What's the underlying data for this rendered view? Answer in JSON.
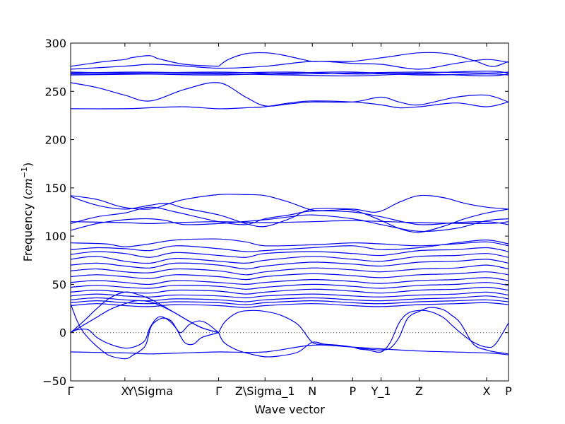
{
  "chart_data": {
    "type": "line",
    "title": "",
    "xlabel": "Wave vector",
    "ylabel_text": "Frequency (",
    "ylabel_unit_base": "cm",
    "ylabel_unit_exp": "−1",
    "ylabel_close": ")",
    "ylim": [
      -50,
      300
    ],
    "yticks": [
      -50,
      0,
      50,
      100,
      150,
      200,
      250,
      300
    ],
    "ytick_labels": [
      "−50",
      "0",
      "50",
      "100",
      "150",
      "200",
      "250",
      "300"
    ],
    "xlim": [
      0,
      100
    ],
    "xticks": [
      {
        "label": "Γ",
        "x": 0
      },
      {
        "label": "X",
        "x": 12.4
      },
      {
        "label": "Y\\Sigma",
        "x": 18.1
      },
      {
        "label": "Γ",
        "x": 33.8
      },
      {
        "label": "Z\\Sigma_1",
        "x": 44.4
      },
      {
        "label": "N",
        "x": 55.2
      },
      {
        "label": "P",
        "x": 64.4
      },
      {
        "label": "Y_1",
        "x": 70.9
      },
      {
        "label": "Z",
        "x": 79.6
      },
      {
        "label": "X",
        "x": 95.0
      },
      {
        "label": "P",
        "x": 100
      }
    ],
    "zero_line": {
      "style": "dotted",
      "color": "#555555"
    },
    "series_color": "#0000ee",
    "series": [
      {
        "x": [
          0,
          8,
          12.4,
          14,
          18.1,
          20,
          26,
          33.8
        ],
        "y": [
          276,
          281,
          283,
          285,
          287,
          284,
          278,
          276
        ]
      },
      {
        "x": [
          33.8,
          36,
          40,
          44.4,
          48,
          53,
          55.2,
          58,
          64.4
        ],
        "y": [
          276,
          283,
          289,
          290,
          288,
          283,
          281,
          281,
          281
        ]
      },
      {
        "x": [
          64.4,
          68,
          73,
          79.6,
          86,
          92,
          95,
          97,
          100
        ],
        "y": [
          281,
          283,
          286,
          290,
          289,
          282,
          277,
          276,
          281
        ]
      },
      {
        "x": [
          0,
          12,
          18.1,
          24,
          33.8,
          44.4,
          55.2,
          64.4,
          70.9,
          79.6,
          88,
          95,
          100
        ],
        "y": [
          273,
          276,
          278,
          277,
          274,
          276,
          281,
          279,
          278,
          273,
          279,
          283,
          280
        ]
      },
      {
        "x": [
          0,
          15,
          33.8,
          50,
          64.4,
          79.6,
          95,
          100
        ],
        "y": [
          270,
          269,
          270,
          268,
          269,
          270,
          269,
          270
        ]
      },
      {
        "x": [
          0,
          15,
          33.8,
          50,
          64.4,
          79.6,
          95,
          100
        ],
        "y": [
          269,
          270,
          269,
          270,
          268,
          269,
          271,
          269
        ]
      },
      {
        "x": [
          0,
          15,
          33.8,
          50,
          64.4,
          79.6,
          95,
          100
        ],
        "y": [
          268,
          268,
          267,
          269,
          270,
          267,
          268,
          267
        ]
      },
      {
        "x": [
          0,
          20,
          33.8,
          50,
          64.4,
          79.6,
          95,
          100
        ],
        "y": [
          267,
          268,
          268,
          267,
          266,
          268,
          266,
          268
        ]
      },
      {
        "x": [
          0,
          6,
          12.4,
          18.1,
          26,
          33.8,
          40,
          44.4,
          50,
          55.2,
          64.4,
          70.9,
          75,
          79.6,
          88,
          95,
          100
        ],
        "y": [
          259,
          254,
          246,
          240,
          252,
          259,
          244,
          235,
          237,
          239,
          239,
          244,
          239,
          236,
          244,
          246,
          239
        ]
      },
      {
        "x": [
          0,
          12.4,
          18.1,
          26,
          33.8,
          40,
          44.4,
          50,
          55.2,
          64.4,
          70.9,
          75,
          79.6,
          88,
          95,
          100
        ],
        "y": [
          232,
          232,
          233,
          234,
          232,
          233,
          234,
          238,
          240,
          239,
          236,
          233,
          234,
          238,
          234,
          239
        ]
      },
      {
        "x": [
          0,
          6,
          12,
          18.1,
          22,
          26,
          33.8,
          40,
          44.4,
          50,
          55.2,
          60,
          64.4,
          70,
          75,
          79.6,
          85,
          90,
          95,
          100
        ],
        "y": [
          142,
          138,
          130,
          128,
          133,
          138,
          143,
          143,
          142,
          135,
          127,
          127,
          127,
          118,
          108,
          104,
          110,
          118,
          124,
          128
        ]
      },
      {
        "x": [
          0,
          6,
          12.4,
          18.1,
          22,
          26,
          33.8,
          40,
          44.4,
          50,
          55.2,
          64.4,
          70,
          75,
          79.6,
          85,
          90,
          95,
          100
        ],
        "y": [
          141,
          132,
          128,
          132,
          134,
          129,
          122,
          113,
          110,
          118,
          128,
          128,
          125,
          135,
          142,
          140,
          134,
          130,
          128
        ]
      },
      {
        "x": [
          0,
          6,
          12.4,
          18.1,
          24,
          33.8,
          40,
          44.4,
          50,
          55.2,
          64.4,
          70.9,
          79.6,
          88,
          95,
          100
        ],
        "y": [
          113,
          120,
          124,
          130,
          125,
          115,
          112,
          118,
          122,
          126,
          125,
          120,
          112,
          114,
          115,
          112
        ]
      },
      {
        "x": [
          0,
          6,
          12.4,
          18.1,
          22,
          26,
          33.8,
          44.4,
          50,
          55.2,
          64.4,
          70.9,
          79.6,
          88,
          95,
          100
        ],
        "y": [
          106,
          113,
          117,
          118,
          116,
          112,
          113,
          117,
          120,
          122,
          118,
          112,
          105,
          108,
          116,
          118
        ]
      },
      {
        "x": [
          0,
          12.4,
          18.1,
          24,
          33.8,
          44.4,
          55.2,
          64.4,
          79.6,
          95,
          100
        ],
        "y": [
          115,
          114,
          113,
          114,
          115,
          114,
          115,
          116,
          114,
          113,
          115
        ]
      },
      {
        "x": [
          0,
          8,
          12.4,
          18.1,
          24,
          33.8,
          40,
          44.4,
          55.2,
          64.4,
          70.9,
          79.6,
          88,
          95,
          100
        ],
        "y": [
          93,
          92,
          89,
          92,
          96,
          97,
          94,
          90,
          91,
          93,
          92,
          90,
          92,
          94,
          90
        ]
      },
      {
        "x": [
          0,
          6,
          12.4,
          18.1,
          24,
          33.8,
          40,
          44.4,
          55.2,
          64.4,
          70.9,
          79.6,
          88,
          95,
          100
        ],
        "y": [
          86,
          88,
          87,
          85,
          90,
          87,
          84,
          85,
          88,
          90,
          86,
          88,
          93,
          96,
          92
        ]
      },
      {
        "x": [
          0,
          6,
          12.4,
          18.1,
          24,
          33.8,
          40,
          44.4,
          55.2,
          64.4,
          70.9,
          79.6,
          88,
          95,
          100
        ],
        "y": [
          81,
          84,
          82,
          78,
          83,
          80,
          78,
          82,
          84,
          82,
          80,
          85,
          86,
          88,
          84
        ]
      },
      {
        "x": [
          0,
          6,
          12.4,
          18.1,
          24,
          33.8,
          40,
          44.4,
          55.2,
          64.4,
          70.9,
          79.6,
          88,
          95,
          100
        ],
        "y": [
          76,
          79,
          74,
          72,
          77,
          74,
          72,
          75,
          79,
          76,
          74,
          79,
          80,
          82,
          78
        ]
      },
      {
        "x": [
          0,
          6,
          12.4,
          18.1,
          24,
          33.8,
          40,
          44.4,
          55.2,
          64.4,
          70.9,
          79.6,
          88,
          95,
          100
        ],
        "y": [
          70,
          72,
          69,
          67,
          72,
          70,
          66,
          69,
          73,
          71,
          69,
          73,
          74,
          76,
          72
        ]
      },
      {
        "x": [
          0,
          6,
          12.4,
          18.1,
          24,
          33.8,
          40,
          44.4,
          55.2,
          64.4,
          70.9,
          79.6,
          88,
          95,
          100
        ],
        "y": [
          64,
          66,
          63,
          62,
          66,
          64,
          60,
          63,
          67,
          65,
          63,
          66,
          67,
          70,
          66
        ]
      },
      {
        "x": [
          0,
          6,
          12.4,
          18.1,
          24,
          33.8,
          40,
          44.4,
          55.2,
          64.4,
          70.9,
          79.6,
          88,
          95,
          100
        ],
        "y": [
          58,
          60,
          58,
          56,
          60,
          58,
          55,
          58,
          61,
          59,
          57,
          60,
          61,
          63,
          60
        ]
      },
      {
        "x": [
          0,
          6,
          12.4,
          18.1,
          24,
          33.8,
          40,
          44.4,
          55.2,
          64.4,
          70.9,
          79.6,
          88,
          95,
          100
        ],
        "y": [
          52,
          54,
          52,
          50,
          54,
          52,
          50,
          52,
          55,
          53,
          51,
          54,
          55,
          57,
          54
        ]
      },
      {
        "x": [
          0,
          6,
          12.4,
          18.1,
          24,
          33.8,
          40,
          44.4,
          55.2,
          64.4,
          70.9,
          79.6,
          88,
          95,
          100
        ],
        "y": [
          47,
          49,
          47,
          46,
          49,
          48,
          45,
          47,
          50,
          48,
          46,
          49,
          50,
          52,
          49
        ]
      },
      {
        "x": [
          0,
          6,
          12.4,
          18.1,
          24,
          33.8,
          40,
          44.4,
          55.2,
          64.4,
          70.9,
          79.6,
          88,
          95,
          100
        ],
        "y": [
          42,
          44,
          42,
          41,
          44,
          43,
          40,
          42,
          45,
          43,
          41,
          44,
          45,
          47,
          44
        ]
      },
      {
        "x": [
          0,
          6,
          12.4,
          18.1,
          24,
          33.8,
          40,
          44.4,
          55.2,
          64.4,
          70.9,
          79.6,
          88,
          95,
          100
        ],
        "y": [
          38,
          40,
          38,
          37,
          39,
          38,
          36,
          38,
          40,
          38,
          37,
          39,
          40,
          42,
          39
        ]
      },
      {
        "x": [
          0,
          6,
          12.4,
          18.1,
          24,
          33.8,
          40,
          44.4,
          55.2,
          64.4,
          70.9,
          79.6,
          88,
          95,
          100
        ],
        "y": [
          34,
          36,
          34,
          33,
          35,
          34,
          32,
          34,
          36,
          34,
          33,
          35,
          36,
          38,
          35
        ]
      },
      {
        "x": [
          0,
          6,
          12.4,
          18.1,
          24,
          33.8,
          40,
          44.4,
          55.2,
          64.4,
          70.9,
          79.6,
          88,
          95,
          100
        ],
        "y": [
          31,
          33,
          31,
          30,
          32,
          31,
          29,
          31,
          33,
          31,
          30,
          32,
          33,
          34,
          32
        ]
      },
      {
        "x": [
          0,
          6,
          12.4,
          18.1,
          24,
          33.8,
          40,
          44.4,
          55.2,
          64.4,
          70.9,
          79.6,
          88,
          95,
          100
        ],
        "y": [
          28,
          30,
          28,
          27,
          29,
          28,
          26,
          28,
          30,
          28,
          27,
          29,
          30,
          31,
          29
        ]
      },
      {
        "x": [
          0,
          3,
          6,
          9,
          12.4,
          15,
          18.1,
          21,
          24,
          27,
          30,
          33.8
        ],
        "y": [
          0,
          12,
          25,
          36,
          42,
          40,
          35,
          28,
          20,
          12,
          5,
          0
        ]
      },
      {
        "x": [
          0,
          3,
          6,
          9,
          12.4,
          15,
          18.1,
          21,
          24,
          27,
          30,
          33.8
        ],
        "y": [
          0,
          8,
          16,
          24,
          30,
          33,
          32,
          27,
          20,
          12,
          5,
          0
        ]
      },
      {
        "x": [
          0,
          1.5,
          4,
          6,
          9,
          12.4,
          15,
          17,
          18.1,
          20,
          22,
          24,
          26,
          28,
          30,
          33.8
        ],
        "y": [
          0,
          3,
          3,
          -5,
          -12,
          -16,
          -14,
          -8,
          5,
          16,
          14,
          5,
          -10,
          -12,
          -5,
          0
        ]
      },
      {
        "x": [
          0,
          1.5,
          3,
          5,
          7,
          9,
          12.4,
          14,
          17,
          18.1,
          19,
          21,
          23,
          25,
          27,
          29,
          31,
          33.8
        ],
        "y": [
          30,
          12,
          0,
          -10,
          -18,
          -24,
          -27,
          -24,
          -14,
          3,
          10,
          15,
          12,
          0,
          8,
          12,
          10,
          0
        ]
      },
      {
        "x": [
          33.8,
          35,
          37,
          39,
          42,
          44.4,
          48,
          52,
          55.2,
          58,
          61,
          64.4,
          66,
          68,
          70.9,
          73,
          75,
          77,
          79.6,
          82,
          85,
          87,
          89,
          92,
          95,
          97,
          100
        ],
        "y": [
          0,
          10,
          18,
          22,
          23,
          22,
          18,
          8,
          -10,
          -12,
          -13,
          -15,
          -17,
          -18,
          -20,
          -10,
          10,
          20,
          23,
          22,
          16,
          8,
          0,
          -10,
          -15,
          -12,
          10
        ]
      },
      {
        "x": [
          33.8,
          35,
          38,
          41,
          44.4,
          48,
          52,
          55.2,
          58,
          61,
          64.4,
          66,
          68,
          70.9,
          73,
          75,
          77,
          79.6,
          82,
          85,
          87,
          89,
          92,
          95,
          97,
          100
        ],
        "y": [
          0,
          -10,
          -18,
          -22,
          -25,
          -24,
          -20,
          -10,
          -12,
          -13,
          -15,
          -16,
          -17,
          -18,
          -16,
          -5,
          15,
          22,
          26,
          24,
          18,
          10,
          -12,
          -18,
          -20,
          -22
        ]
      },
      {
        "x": [
          0,
          12.4,
          18.1,
          26,
          33.8,
          44.4,
          55.2,
          64.4,
          79.6,
          95,
          100
        ],
        "y": [
          -20,
          -21,
          -22,
          -21,
          -20,
          -20,
          -13,
          -15,
          -19,
          -21,
          -23
        ]
      }
    ]
  }
}
